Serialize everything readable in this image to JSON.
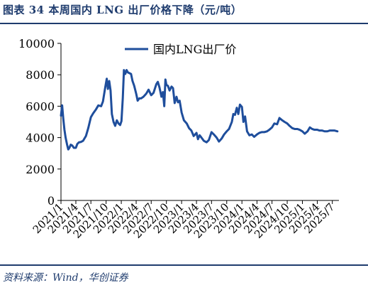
{
  "figure": {
    "title": "图表 34   本周国内 LNG 出厂价格下降（元/吨）",
    "source": "资料来源：Wind，华创证券"
  },
  "colors": {
    "line": "#1f4e9c",
    "text": "#1f3c6e",
    "axis": "#000000"
  },
  "chart_data": {
    "type": "line",
    "title": "",
    "xlabel": "",
    "ylabel": "",
    "ylim": [
      0,
      10000
    ],
    "yticks": [
      0,
      2000,
      4000,
      6000,
      8000,
      10000
    ],
    "ytick_labels": [
      "0",
      "2000",
      "4000",
      "6000",
      "8000",
      "10000"
    ],
    "xlim": [
      "2021-01-01",
      "2025-08-10"
    ],
    "xticks": [
      "2021-01-01",
      "2021-04-01",
      "2021-07-01",
      "2021-10-01",
      "2022-01-01",
      "2022-04-01",
      "2022-07-01",
      "2022-10-01",
      "2023-01-01",
      "2023-04-01",
      "2023-07-01",
      "2023-10-01",
      "2024-01-01",
      "2024-04-01",
      "2024-07-01",
      "2024-10-01",
      "2025-01-01",
      "2025-04-01",
      "2025-07-01"
    ],
    "xtick_labels": [
      "2021/1",
      "2021/4",
      "2021/7",
      "2021/10",
      "2022/1",
      "2022/4",
      "2022/7",
      "2022/10",
      "2023/1",
      "2023/4",
      "2023/7",
      "2023/10",
      "2024/1",
      "2024/4",
      "2024/7",
      "2024/10",
      "2025/1",
      "2025/4",
      "2025/7"
    ],
    "grid": false,
    "legend_position": "top-center",
    "series": [
      {
        "name": "国内LNG出厂价",
        "color": "#1f4e9c",
        "points": [
          [
            "2021-01-01",
            5400
          ],
          [
            "2021-01-08",
            6050
          ],
          [
            "2021-01-15",
            5200
          ],
          [
            "2021-01-22",
            4500
          ],
          [
            "2021-01-29",
            4000
          ],
          [
            "2021-02-07",
            3550
          ],
          [
            "2021-02-14",
            3250
          ],
          [
            "2021-02-21",
            3350
          ],
          [
            "2021-03-01",
            3550
          ],
          [
            "2021-03-10",
            3500
          ],
          [
            "2021-03-20",
            3350
          ],
          [
            "2021-04-01",
            3350
          ],
          [
            "2021-04-10",
            3600
          ],
          [
            "2021-04-20",
            3700
          ],
          [
            "2021-05-01",
            3720
          ],
          [
            "2021-05-15",
            3800
          ],
          [
            "2021-06-01",
            4100
          ],
          [
            "2021-06-15",
            4600
          ],
          [
            "2021-07-01",
            5300
          ],
          [
            "2021-07-15",
            5550
          ],
          [
            "2021-08-01",
            5800
          ],
          [
            "2021-08-15",
            6050
          ],
          [
            "2021-09-01",
            6000
          ],
          [
            "2021-09-12",
            6300
          ],
          [
            "2021-09-25",
            7150
          ],
          [
            "2021-10-05",
            7750
          ],
          [
            "2021-10-12",
            7100
          ],
          [
            "2021-10-20",
            7600
          ],
          [
            "2021-10-28",
            7000
          ],
          [
            "2021-11-05",
            5500
          ],
          [
            "2021-11-15",
            5000
          ],
          [
            "2021-11-25",
            4750
          ],
          [
            "2021-12-05",
            5100
          ],
          [
            "2021-12-15",
            4900
          ],
          [
            "2021-12-25",
            4800
          ],
          [
            "2022-01-02",
            5050
          ],
          [
            "2022-01-10",
            6500
          ],
          [
            "2022-01-17",
            8300
          ],
          [
            "2022-01-25",
            8050
          ],
          [
            "2022-02-02",
            8300
          ],
          [
            "2022-02-10",
            8150
          ],
          [
            "2022-02-20",
            8100
          ],
          [
            "2022-03-01",
            8050
          ],
          [
            "2022-03-10",
            7600
          ],
          [
            "2022-03-20",
            7300
          ],
          [
            "2022-04-01",
            6800
          ],
          [
            "2022-04-10",
            6350
          ],
          [
            "2022-04-20",
            6500
          ],
          [
            "2022-05-01",
            6500
          ],
          [
            "2022-05-15",
            6600
          ],
          [
            "2022-06-01",
            6800
          ],
          [
            "2022-06-15",
            7050
          ],
          [
            "2022-07-01",
            6700
          ],
          [
            "2022-07-15",
            6850
          ],
          [
            "2022-08-01",
            7400
          ],
          [
            "2022-08-10",
            7550
          ],
          [
            "2022-08-20",
            7200
          ],
          [
            "2022-09-01",
            6600
          ],
          [
            "2022-09-10",
            6900
          ],
          [
            "2022-09-18",
            6000
          ],
          [
            "2022-09-25",
            7700
          ],
          [
            "2022-10-01",
            7350
          ],
          [
            "2022-10-10",
            7300
          ],
          [
            "2022-10-20",
            7000
          ],
          [
            "2022-11-01",
            7250
          ],
          [
            "2022-11-10",
            7150
          ],
          [
            "2022-11-20",
            6200
          ],
          [
            "2022-12-01",
            6600
          ],
          [
            "2022-12-10",
            6250
          ],
          [
            "2022-12-20",
            6350
          ],
          [
            "2023-01-01",
            5600
          ],
          [
            "2023-01-15",
            5100
          ],
          [
            "2023-02-01",
            4900
          ],
          [
            "2023-02-15",
            4600
          ],
          [
            "2023-03-01",
            4450
          ],
          [
            "2023-03-15",
            4100
          ],
          [
            "2023-04-01",
            4300
          ],
          [
            "2023-04-10",
            3900
          ],
          [
            "2023-04-20",
            4150
          ],
          [
            "2023-05-01",
            4000
          ],
          [
            "2023-05-15",
            3800
          ],
          [
            "2023-06-01",
            3700
          ],
          [
            "2023-06-15",
            3850
          ],
          [
            "2023-07-01",
            4350
          ],
          [
            "2023-07-15",
            4200
          ],
          [
            "2023-08-01",
            4000
          ],
          [
            "2023-08-15",
            3750
          ],
          [
            "2023-09-01",
            3950
          ],
          [
            "2023-09-15",
            4200
          ],
          [
            "2023-10-01",
            4400
          ],
          [
            "2023-10-15",
            4550
          ],
          [
            "2023-11-01",
            5000
          ],
          [
            "2023-11-10",
            5500
          ],
          [
            "2023-11-20",
            5450
          ],
          [
            "2023-12-01",
            5900
          ],
          [
            "2023-12-10",
            5500
          ],
          [
            "2023-12-20",
            6100
          ],
          [
            "2024-01-01",
            5950
          ],
          [
            "2024-01-10",
            5000
          ],
          [
            "2024-01-20",
            5350
          ],
          [
            "2024-02-01",
            4400
          ],
          [
            "2024-02-15",
            4150
          ],
          [
            "2024-03-01",
            4200
          ],
          [
            "2024-03-15",
            4050
          ],
          [
            "2024-04-01",
            4200
          ],
          [
            "2024-04-15",
            4300
          ],
          [
            "2024-05-01",
            4350
          ],
          [
            "2024-05-15",
            4350
          ],
          [
            "2024-06-01",
            4400
          ],
          [
            "2024-06-15",
            4500
          ],
          [
            "2024-07-01",
            4650
          ],
          [
            "2024-07-15",
            4900
          ],
          [
            "2024-08-01",
            4850
          ],
          [
            "2024-08-15",
            5250
          ],
          [
            "2024-09-01",
            5100
          ],
          [
            "2024-09-15",
            5000
          ],
          [
            "2024-10-01",
            4900
          ],
          [
            "2024-10-15",
            4750
          ],
          [
            "2024-11-01",
            4600
          ],
          [
            "2024-11-15",
            4550
          ],
          [
            "2024-12-01",
            4550
          ],
          [
            "2024-12-15",
            4500
          ],
          [
            "2025-01-01",
            4400
          ],
          [
            "2025-01-15",
            4250
          ],
          [
            "2025-02-01",
            4400
          ],
          [
            "2025-02-15",
            4650
          ],
          [
            "2025-03-01",
            4550
          ],
          [
            "2025-03-15",
            4500
          ],
          [
            "2025-04-01",
            4500
          ],
          [
            "2025-04-15",
            4450
          ],
          [
            "2025-05-01",
            4450
          ],
          [
            "2025-05-15",
            4400
          ],
          [
            "2025-06-01",
            4400
          ],
          [
            "2025-06-15",
            4450
          ],
          [
            "2025-07-01",
            4450
          ],
          [
            "2025-07-15",
            4450
          ],
          [
            "2025-08-01",
            4400
          ]
        ]
      }
    ]
  }
}
